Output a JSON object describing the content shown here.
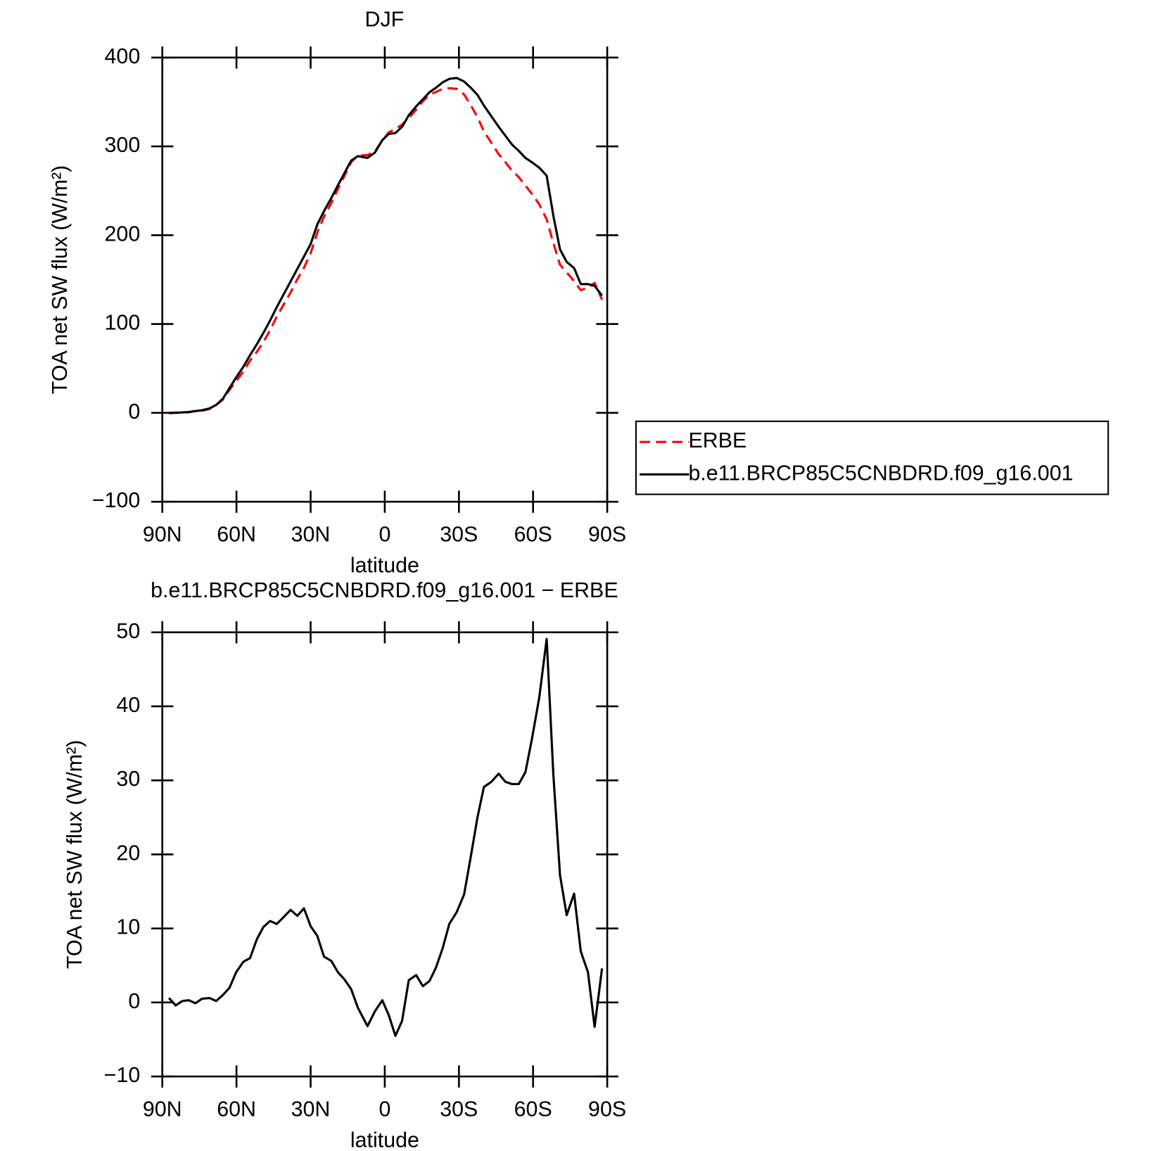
{
  "chart_data": [
    {
      "type": "line",
      "title": "DJF",
      "x_label": "latitude",
      "y_label": "TOA net SW flux (W/m²)",
      "x": [
        87.3,
        84.6,
        81.9,
        79.3,
        76.6,
        73.9,
        70.9,
        68.2,
        65.5,
        62.8,
        60.1,
        57.2,
        54.5,
        51.8,
        49.1,
        46.4,
        43.7,
        41.0,
        38.1,
        35.4,
        32.7,
        30.0,
        27.3,
        24.6,
        21.6,
        19.0,
        16.3,
        13.6,
        10.9,
        7.0,
        4.0,
        1.0,
        -1.6,
        -4.3,
        -7.0,
        -9.7,
        -12.7,
        -15.4,
        -18.1,
        -20.7,
        -23.4,
        -26.1,
        -29.1,
        -32.1,
        -34.8,
        -37.5,
        -40.1,
        -43.1,
        -46.1,
        -48.8,
        -51.5,
        -54.2,
        -56.9,
        -59.6,
        -62.5,
        -65.5,
        -68.2,
        -70.9,
        -73.6,
        -76.6,
        -79.3,
        -82.2,
        -84.9,
        -87.9
      ],
      "series": [
        {
          "name": "ERBE",
          "color": "#ff0000",
          "linestyle": "dashed",
          "values": [
            -0.6,
            0.4,
            0.3,
            0.7,
            2.1,
            2.5,
            4.4,
            8.8,
            15,
            26,
            35.9,
            46.5,
            59,
            68.5,
            79.8,
            93,
            108.4,
            121.5,
            135.5,
            150.3,
            163.3,
            179.7,
            203,
            220.8,
            236.4,
            251.9,
            266.9,
            282.2,
            289.7,
            290.2,
            294.2,
            306.7,
            315.7,
            319.5,
            324.5,
            332,
            341.3,
            350.8,
            358.1,
            361.3,
            364.7,
            365.4,
            364.8,
            358.4,
            346.3,
            333,
            316.9,
            304.2,
            291.1,
            282.2,
            272.5,
            265.5,
            255.9,
            246.3,
            234.8,
            217.9,
            191.2,
            166.8,
            158.2,
            148.3,
            138.1,
            140.9,
            146.3,
            127.4
          ]
        },
        {
          "name": "b.e11.BRCP85C5CNBDRD.f09_g16.001",
          "color": "#000000",
          "linestyle": "solid",
          "values": [
            0,
            0,
            0.5,
            1,
            2,
            3,
            5,
            9,
            16,
            28,
            40,
            52,
            65,
            77,
            90,
            104,
            119,
            133,
            148,
            162,
            176,
            190,
            212,
            227,
            242,
            256,
            270,
            284,
            289,
            287,
            293,
            307,
            314,
            315,
            322,
            335,
            345,
            353,
            361,
            366,
            372,
            376,
            377,
            373,
            366,
            358,
            346,
            334,
            322,
            312,
            302,
            295,
            287,
            282,
            276,
            267,
            222,
            184,
            170,
            163,
            145,
            145,
            143,
            132
          ]
        }
      ],
      "xlim": [
        90,
        -90
      ],
      "xticks": [
        {
          "value": 90,
          "label": "90N"
        },
        {
          "value": 60,
          "label": "60N"
        },
        {
          "value": 30,
          "label": "30N"
        },
        0,
        {
          "value": -30,
          "label": "30S"
        },
        {
          "value": -60,
          "label": "60S"
        },
        {
          "value": -90,
          "label": "90S"
        }
      ],
      "ylim": [
        -100,
        400
      ],
      "yticks": [
        {
          "value": -100,
          "label": "−100"
        },
        0,
        100,
        200,
        300,
        400
      ],
      "legend": "right"
    },
    {
      "type": "line",
      "title": "b.e11.BRCP85C5CNBDRD.f09_g16.001 − ERBE",
      "x_label": "latitude",
      "y_label": "TOA net SW flux (W/m²)",
      "x": [
        87.3,
        84.6,
        81.9,
        79.3,
        76.6,
        73.9,
        70.9,
        68.2,
        65.5,
        62.8,
        60.1,
        57.2,
        54.5,
        51.8,
        49.1,
        46.4,
        43.7,
        41.0,
        38.1,
        35.4,
        32.7,
        30.0,
        27.3,
        24.6,
        21.6,
        19.0,
        16.3,
        13.6,
        10.9,
        7.0,
        4.0,
        1.0,
        -1.6,
        -4.3,
        -7.0,
        -9.7,
        -12.7,
        -15.4,
        -18.1,
        -20.7,
        -23.4,
        -26.1,
        -29.1,
        -32.1,
        -34.8,
        -37.5,
        -40.1,
        -43.1,
        -46.1,
        -48.8,
        -51.5,
        -54.2,
        -56.9,
        -59.6,
        -62.5,
        -65.5,
        -68.2,
        -70.9,
        -73.6,
        -76.6,
        -79.3,
        -82.2,
        -84.9,
        -87.9
      ],
      "color": "#000000",
      "values": [
        0.6,
        -0.4,
        0.2,
        0.3,
        -0.1,
        0.5,
        0.6,
        0.2,
        1.0,
        2.0,
        4.1,
        5.5,
        6.0,
        8.5,
        10.2,
        11.0,
        10.6,
        11.5,
        12.5,
        11.7,
        12.7,
        10.3,
        9.0,
        6.2,
        5.6,
        4.1,
        3.1,
        1.8,
        -0.7,
        -3.2,
        -1.2,
        0.3,
        -1.7,
        -4.5,
        -2.5,
        3.0,
        3.7,
        2.2,
        2.9,
        4.7,
        7.3,
        10.6,
        12.2,
        14.6,
        19.7,
        25.0,
        29.1,
        29.8,
        30.9,
        29.8,
        29.5,
        29.5,
        31.1,
        35.7,
        41.2,
        49.1,
        30.8,
        17.2,
        11.8,
        14.7,
        6.9,
        4.1,
        -3.3,
        4.6
      ],
      "xlim": [
        90,
        -90
      ],
      "xticks": [
        {
          "value": 90,
          "label": "90N"
        },
        {
          "value": 60,
          "label": "60N"
        },
        {
          "value": 30,
          "label": "30N"
        },
        0,
        {
          "value": -30,
          "label": "30S"
        },
        {
          "value": -60,
          "label": "60S"
        },
        {
          "value": -90,
          "label": "90S"
        }
      ],
      "ylim": [
        -10,
        50
      ],
      "yticks": [
        {
          "value": -10,
          "label": "−10"
        },
        0,
        10,
        20,
        30,
        40,
        50
      ]
    }
  ]
}
